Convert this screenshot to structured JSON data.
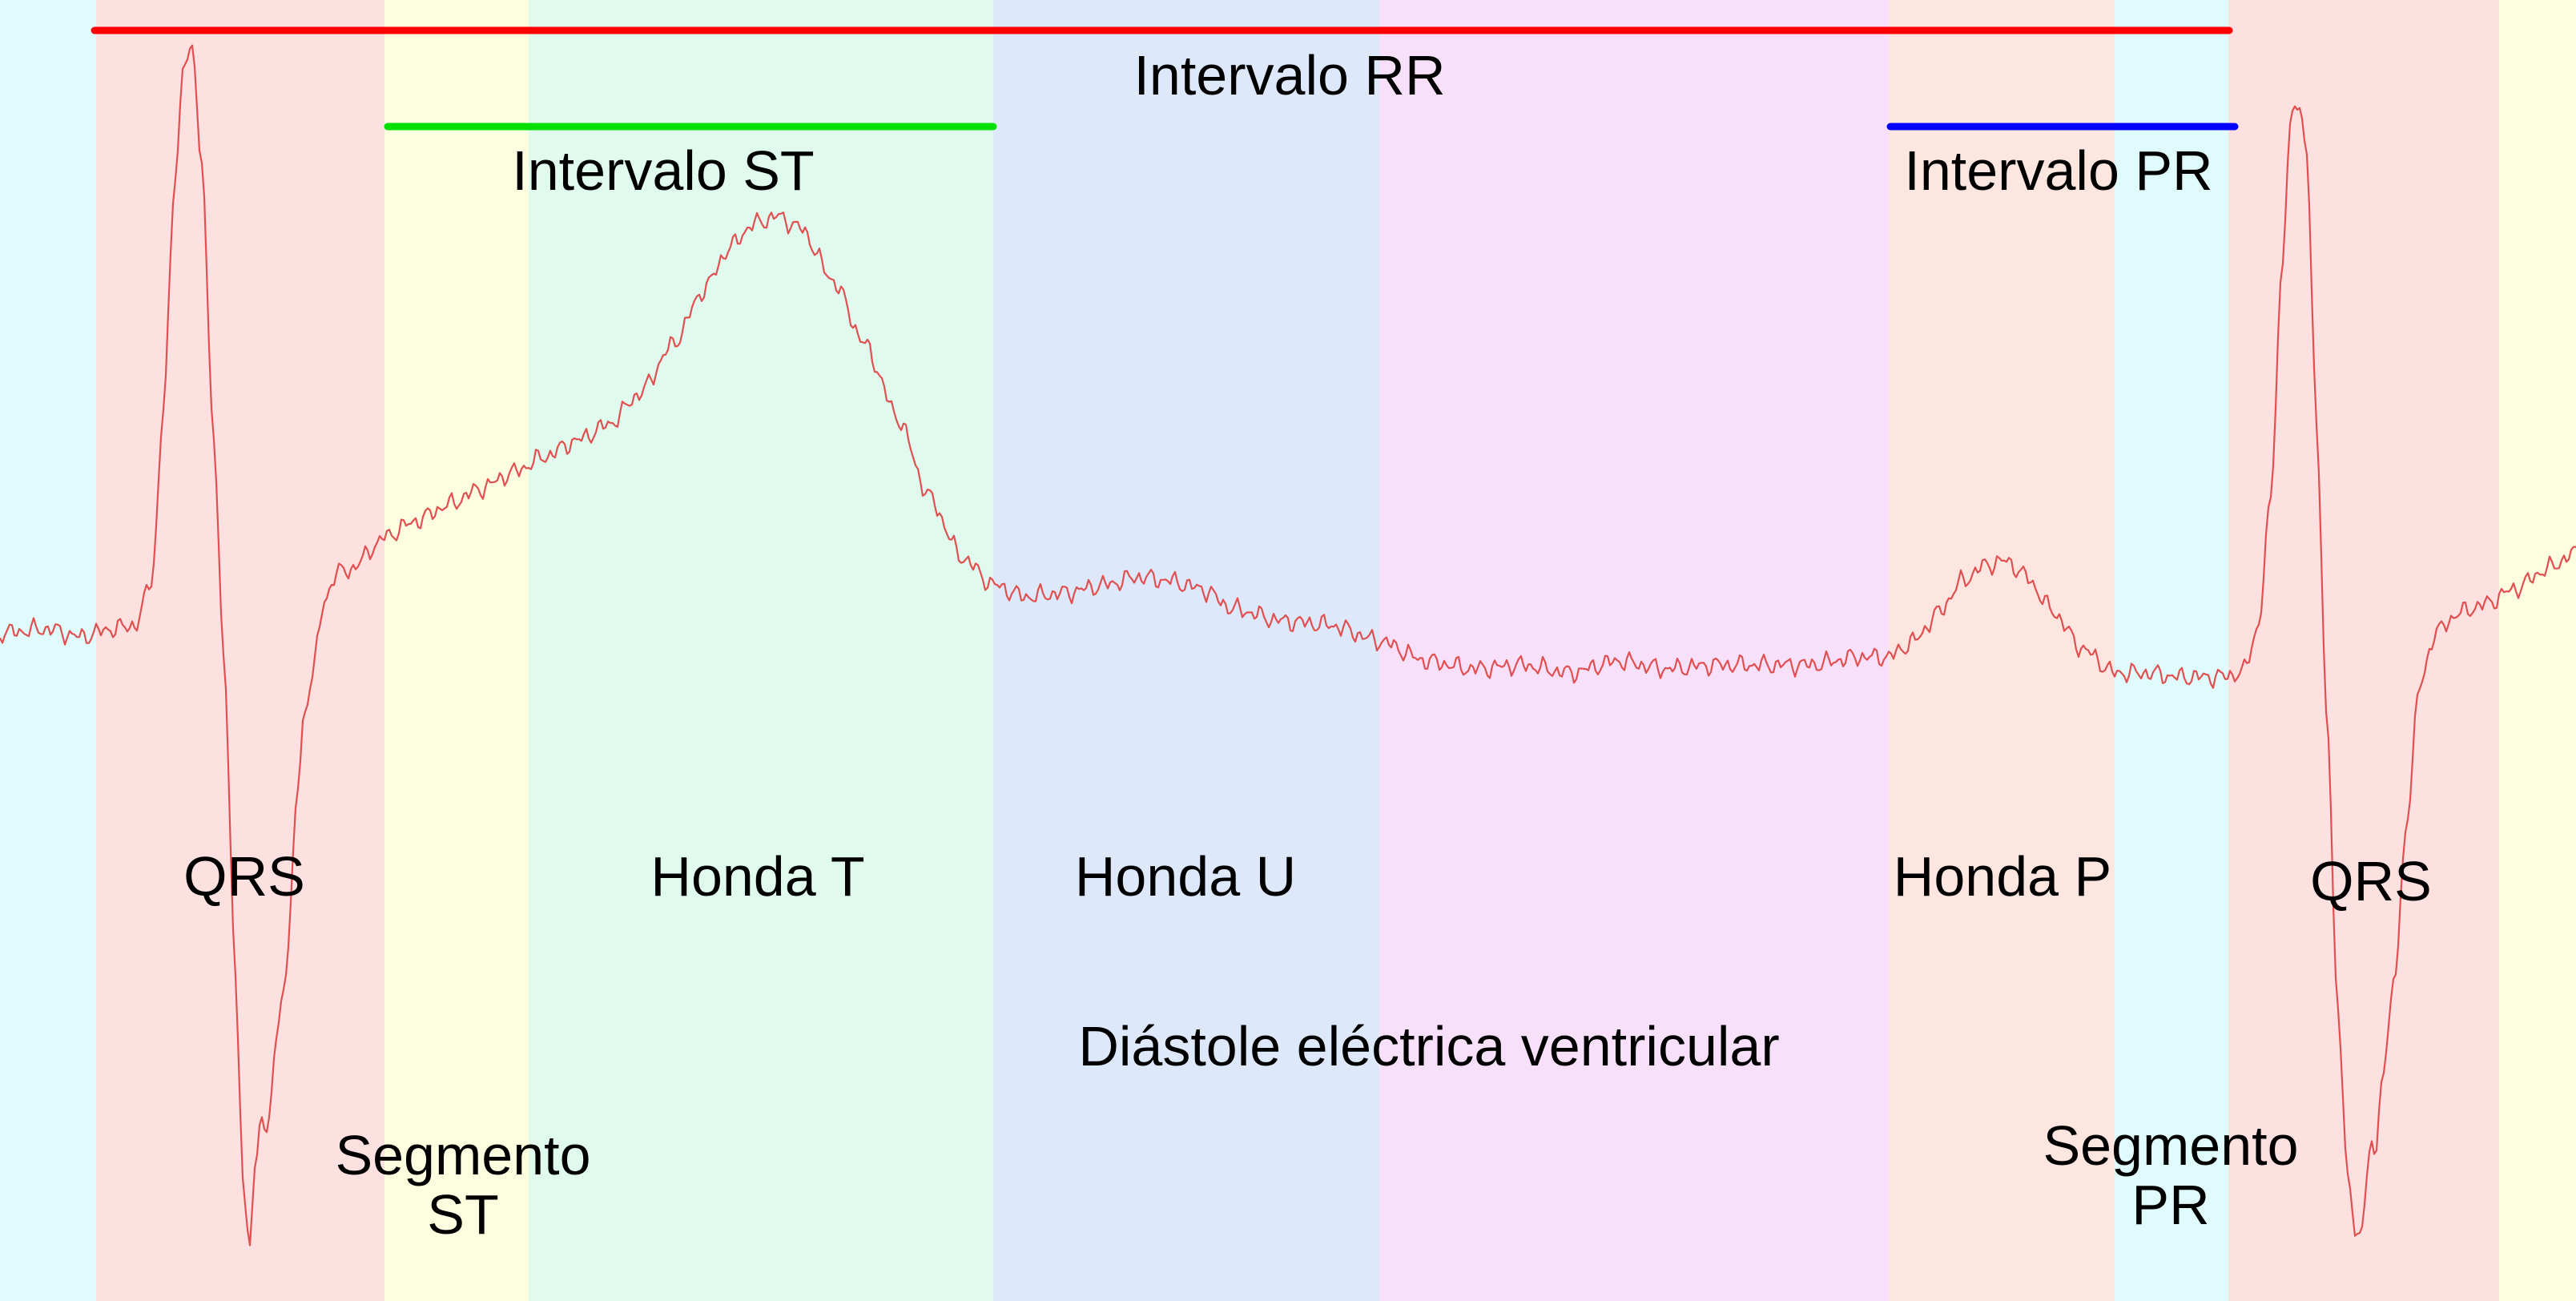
{
  "colors": {
    "cyan": "#e0fbfb",
    "red": "#fde0e0",
    "yellow": "#fdfde0",
    "green": "#e0fbee",
    "blue": "#dee8fb",
    "magenta": "#f8e0fb",
    "peach": "#fde6e0",
    "trace": "#e05050",
    "rr": "#ff0000",
    "st": "#00e000",
    "pr": "#0000ff"
  },
  "intervals": {
    "rr": "Intervalo RR",
    "st": "Intervalo ST",
    "pr": "Intervalo PR"
  },
  "waves": {
    "qrs_first": "QRS",
    "t": "Honda T",
    "u": "Honda U",
    "p": "Honda P",
    "qrs_second": "QRS"
  },
  "segments": {
    "st_line1": "Segmento",
    "st_line2": "ST",
    "pr_line1": "Segmento",
    "pr_line2": "PR"
  },
  "diastole": "Diástole eléctrica ventricular"
}
